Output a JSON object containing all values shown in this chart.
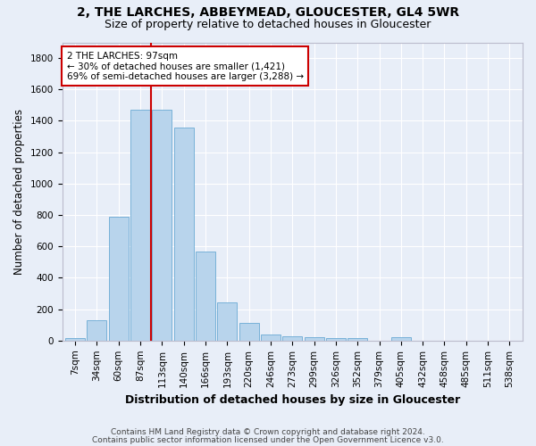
{
  "title_line1": "2, THE LARCHES, ABBEYMEAD, GLOUCESTER, GL4 5WR",
  "title_line2": "Size of property relative to detached houses in Gloucester",
  "xlabel": "Distribution of detached houses by size in Gloucester",
  "ylabel": "Number of detached properties",
  "bar_color": "#b8d4ec",
  "bar_edge_color": "#6aaad4",
  "background_color": "#e8eef8",
  "grid_color": "#ffffff",
  "categories": [
    "7sqm",
    "34sqm",
    "60sqm",
    "87sqm",
    "113sqm",
    "140sqm",
    "166sqm",
    "193sqm",
    "220sqm",
    "246sqm",
    "273sqm",
    "299sqm",
    "326sqm",
    "352sqm",
    "379sqm",
    "405sqm",
    "432sqm",
    "458sqm",
    "485sqm",
    "511sqm",
    "538sqm"
  ],
  "values": [
    15,
    130,
    790,
    1470,
    1470,
    1360,
    570,
    245,
    110,
    40,
    28,
    20,
    18,
    15,
    0,
    20,
    0,
    0,
    0,
    0,
    0
  ],
  "property_line_bin_index": 3.5,
  "annotation_text": "2 THE LARCHES: 97sqm\n← 30% of detached houses are smaller (1,421)\n69% of semi-detached houses are larger (3,288) →",
  "annotation_box_color": "#ffffff",
  "annotation_box_edge_color": "#cc0000",
  "vline_color": "#cc0000",
  "ylim": [
    0,
    1900
  ],
  "yticks": [
    0,
    200,
    400,
    600,
    800,
    1000,
    1200,
    1400,
    1600,
    1800
  ],
  "footer_line1": "Contains HM Land Registry data © Crown copyright and database right 2024.",
  "footer_line2": "Contains public sector information licensed under the Open Government Licence v3.0.",
  "title_fontsize": 10,
  "subtitle_fontsize": 9,
  "axis_label_fontsize": 8.5,
  "tick_fontsize": 7.5,
  "annotation_fontsize": 7.5,
  "footer_fontsize": 6.5
}
